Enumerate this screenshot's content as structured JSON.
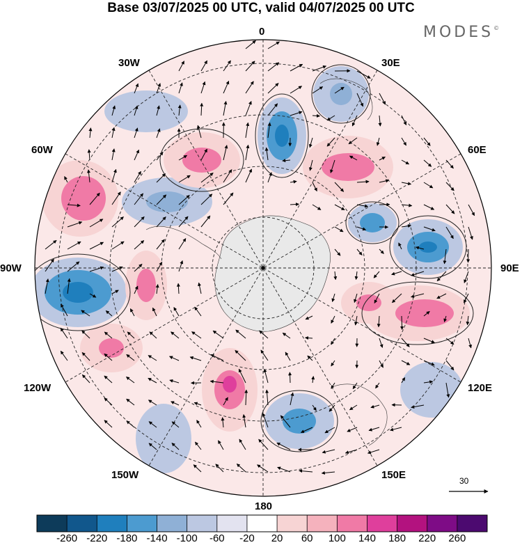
{
  "header": {
    "title": "Base 03/07/2025 00 UTC, valid 04/07/2025 00 UTC",
    "brand": "MODES",
    "brand_mark": "©"
  },
  "map": {
    "projection": "polar-stereographic-south",
    "longitude_labels": {
      "lon_0": "0",
      "lon_30e": "30E",
      "lon_60e": "60E",
      "lon_90e": "90E",
      "lon_120e": "120E",
      "lon_150e": "150E",
      "lon_180": "180",
      "lon_150w": "150W",
      "lon_120w": "120W",
      "lon_90w": "90W",
      "lon_60w": "60W",
      "lon_30w": "30W"
    },
    "vector_reference_label": "30"
  },
  "colorbar": {
    "colors": [
      "#0d3b5a",
      "#11578c",
      "#1f7fbd",
      "#4c9bd0",
      "#8fb0d6",
      "#bcc8e2",
      "#e3e3f0",
      "#ffffff",
      "#f7d4d4",
      "#f5b2bd",
      "#f07aa6",
      "#df3f9c",
      "#b3127f",
      "#7e0c86",
      "#4c0a70"
    ],
    "ticks": [
      "-260",
      "-220",
      "-180",
      "-140",
      "-100",
      "-60",
      "-20",
      "20",
      "60",
      "100",
      "140",
      "180",
      "220",
      "260"
    ]
  },
  "colors": {
    "negative": "#4c9bd0",
    "positive": "#f07aa6",
    "land": "#e9e9e9"
  }
}
